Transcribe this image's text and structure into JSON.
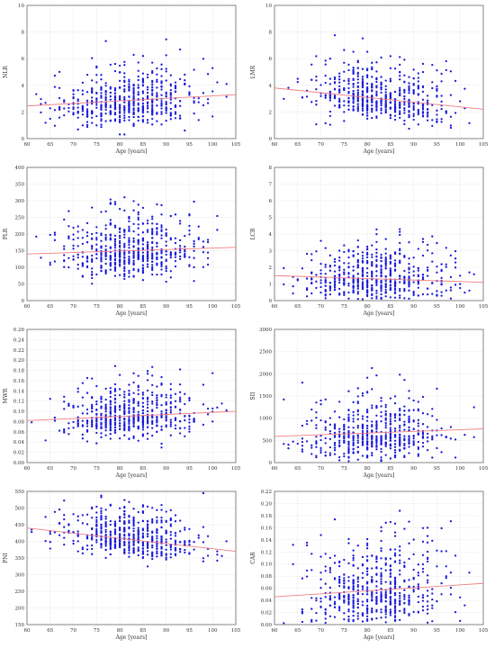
{
  "chart_data": [
    {
      "type": "scatter",
      "ylabel": "NLR",
      "xlabel": "Age [years]",
      "xlim": [
        60,
        105
      ],
      "ylim": [
        0,
        10
      ],
      "xticks": [
        60,
        65,
        70,
        75,
        80,
        85,
        90,
        95,
        100,
        105
      ],
      "yticks": [
        0,
        2,
        4,
        6,
        8,
        10
      ],
      "y_center": 2.7,
      "y_spread": 1.0,
      "y_max": 7.5,
      "trend": [
        [
          60,
          2.45
        ],
        [
          105,
          3.3
        ]
      ]
    },
    {
      "type": "scatter",
      "ylabel": "LMR",
      "xlabel": "Age [years]",
      "xlim": [
        60,
        105
      ],
      "ylim": [
        0,
        10
      ],
      "xticks": [
        60,
        65,
        70,
        75,
        80,
        85,
        90,
        95,
        100,
        105
      ],
      "yticks": [
        0,
        2,
        4,
        6,
        8,
        10
      ],
      "y_center": 3.0,
      "y_spread": 1.0,
      "y_max": 9.4,
      "trend": [
        [
          60,
          3.8
        ],
        [
          105,
          2.2
        ]
      ]
    },
    {
      "type": "scatter",
      "ylabel": "PLR",
      "xlabel": "Age [years]",
      "xlim": [
        60,
        105
      ],
      "ylim": [
        0,
        400
      ],
      "xticks": [
        60,
        65,
        70,
        75,
        80,
        85,
        90,
        95,
        100,
        105
      ],
      "yticks": [
        0,
        50,
        100,
        150,
        200,
        250,
        300,
        350,
        400
      ],
      "y_center": 145,
      "y_spread": 45,
      "y_max": 400,
      "trend": [
        [
          60,
          140
        ],
        [
          105,
          160
        ]
      ]
    },
    {
      "type": "scatter",
      "ylabel": "LCR",
      "xlabel": "Age [years]",
      "xlim": [
        60,
        105
      ],
      "ylim": [
        0,
        8
      ],
      "xticks": [
        60,
        65,
        70,
        75,
        80,
        85,
        90,
        95,
        100,
        105
      ],
      "yticks": [
        0,
        1,
        2,
        3,
        4,
        5,
        6,
        7,
        8
      ],
      "y_center": 1.3,
      "y_spread": 0.8,
      "y_max": 7.5,
      "trend": [
        [
          60,
          1.5
        ],
        [
          105,
          1.1
        ]
      ]
    },
    {
      "type": "scatter",
      "ylabel": "MWR",
      "xlabel": "Age [years]",
      "xlim": [
        60,
        105
      ],
      "ylim": [
        0,
        0.26
      ],
      "xticks": [
        60,
        65,
        70,
        75,
        80,
        85,
        90,
        95,
        100,
        105
      ],
      "yticks": [
        0,
        0.02,
        0.04,
        0.06,
        0.08,
        0.1,
        0.12,
        0.14,
        0.16,
        0.18,
        0.2,
        0.22,
        0.24,
        0.26
      ],
      "y_center": 0.09,
      "y_spread": 0.025,
      "y_max": 0.25,
      "trend": [
        [
          60,
          0.082
        ],
        [
          105,
          0.1
        ]
      ]
    },
    {
      "type": "scatter",
      "ylabel": "SII",
      "xlabel": "Age [years]",
      "xlim": [
        60,
        105
      ],
      "ylim": [
        0,
        3000
      ],
      "xticks": [
        60,
        65,
        70,
        75,
        80,
        85,
        90,
        95,
        100,
        105
      ],
      "yticks": [
        0,
        500,
        1000,
        1500,
        2000,
        2500,
        3000
      ],
      "y_center": 620,
      "y_spread": 320,
      "y_max": 2950,
      "trend": [
        [
          60,
          590
        ],
        [
          105,
          760
        ]
      ]
    },
    {
      "type": "scatter",
      "ylabel": "PNI",
      "xlabel": "Age [years]",
      "xlim": [
        60,
        105
      ],
      "ylim": [
        150,
        550
      ],
      "xticks": [
        60,
        65,
        70,
        75,
        80,
        85,
        90,
        95,
        100,
        105
      ],
      "yticks": [
        150,
        200,
        250,
        300,
        350,
        400,
        450,
        500,
        550
      ],
      "y_center": 410,
      "y_spread": 35,
      "y_max": 550,
      "trend": [
        [
          60,
          440
        ],
        [
          105,
          370
        ]
      ]
    },
    {
      "type": "scatter",
      "ylabel": "CAR",
      "xlabel": "Age [years]",
      "xlim": [
        60,
        105
      ],
      "ylim": [
        0,
        0.22
      ],
      "xticks": [
        60,
        65,
        70,
        75,
        80,
        85,
        90,
        95,
        100,
        105
      ],
      "yticks": [
        0,
        0.02,
        0.04,
        0.06,
        0.08,
        0.1,
        0.12,
        0.14,
        0.16,
        0.18,
        0.2,
        0.22
      ],
      "y_center": 0.055,
      "y_spread": 0.035,
      "y_max": 0.195,
      "trend": [
        [
          60,
          0.046
        ],
        [
          105,
          0.068
        ]
      ]
    }
  ],
  "colors": {
    "points": "#1a1adb",
    "trend": "#f08080",
    "grid": "#d8d8d8",
    "axis": "#555555"
  }
}
